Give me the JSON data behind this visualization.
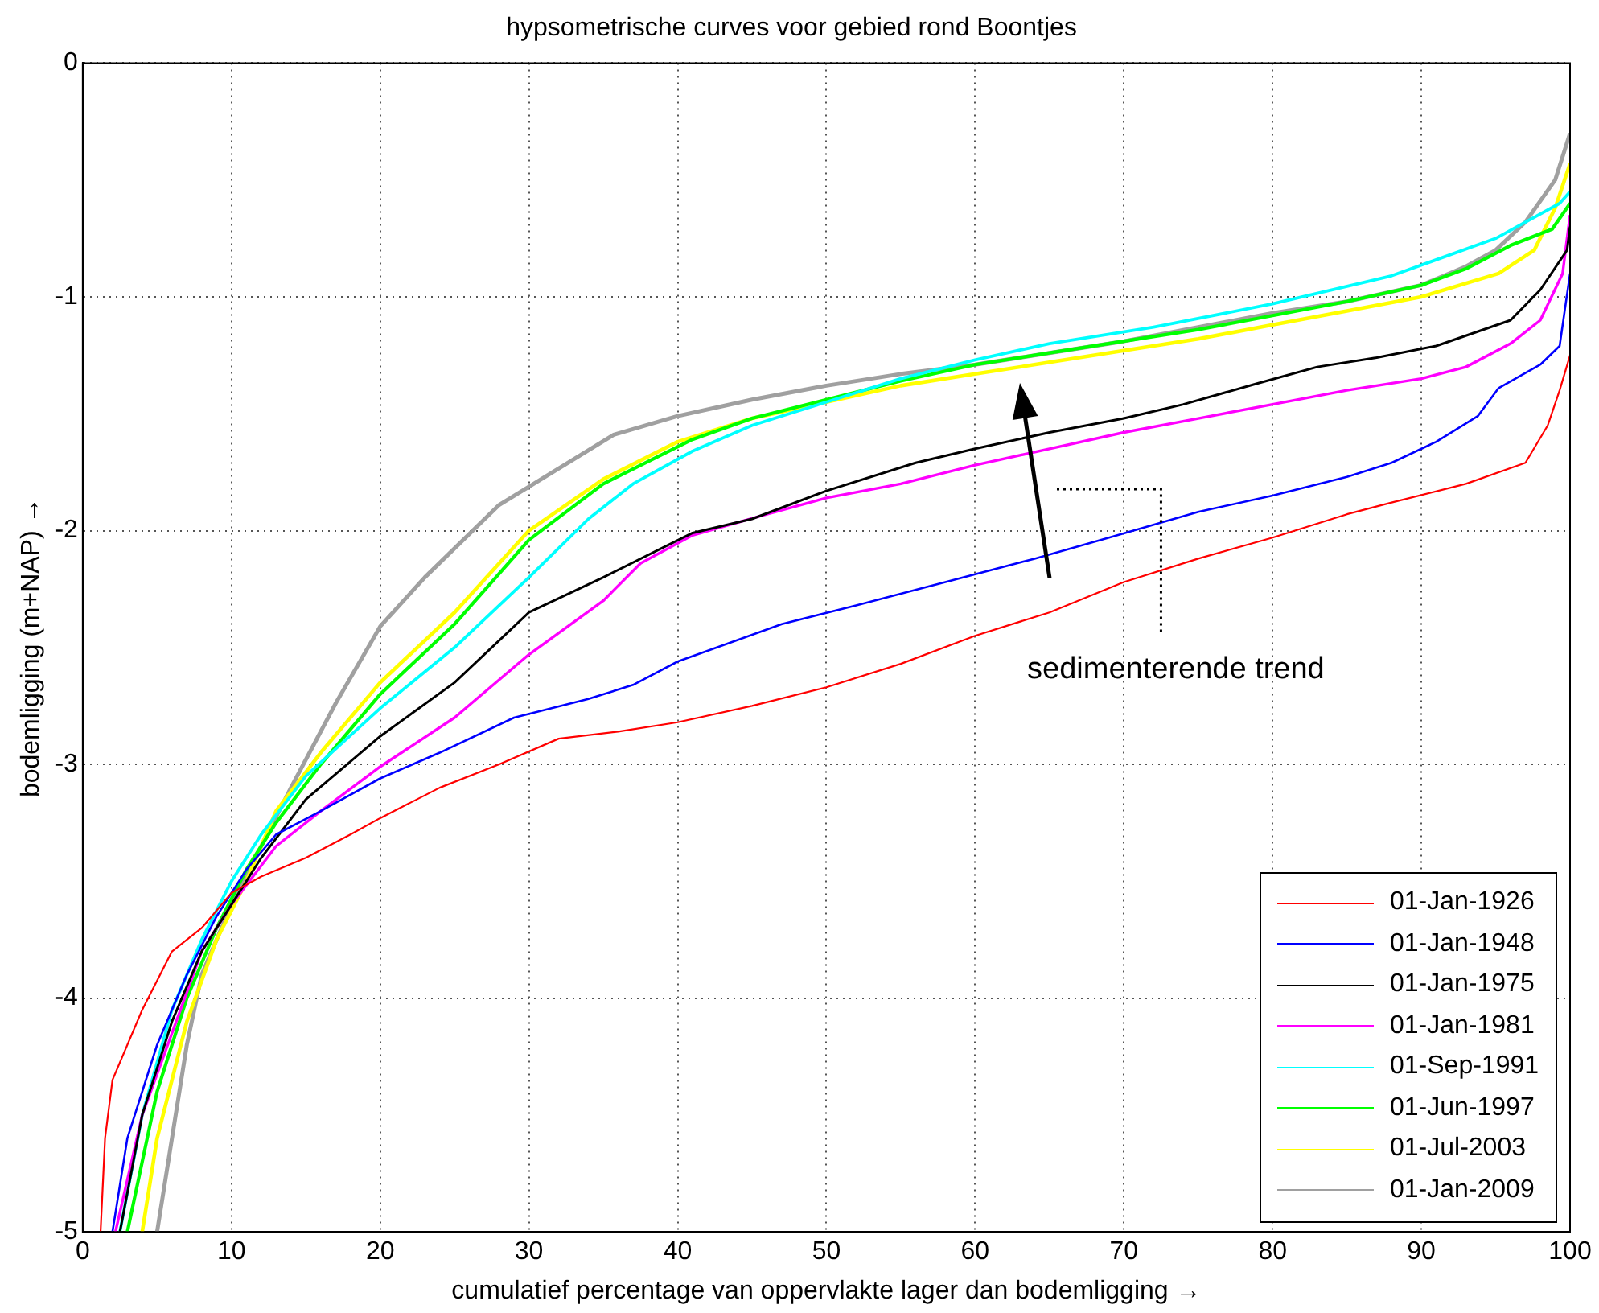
{
  "chart_data": {
    "type": "line",
    "title": "hypsometrische curves voor gebied rond Boontjes",
    "xlabel": "cumulatief percentage van oppervlakte lager dan bodemligging →",
    "ylabel": "bodemligging (m+NAP) →",
    "xlim": [
      0,
      100
    ],
    "xticks": [
      0,
      10,
      20,
      30,
      40,
      50,
      60,
      70,
      80,
      90,
      100
    ],
    "ylim": [
      -5,
      0
    ],
    "yticks": [
      -5,
      -4,
      -3,
      -2,
      -1,
      0
    ],
    "grid": true,
    "legend": "bottom right",
    "annotations": [
      "sedimenterende trend"
    ],
    "series": [
      {
        "name": "01-Jan-1926",
        "color": "#ff0000",
        "x": [
          1.2,
          1.5,
          2,
          4,
          6,
          8,
          10,
          12,
          15,
          18,
          20,
          24,
          28,
          32,
          36,
          40,
          45,
          50,
          55,
          60,
          65,
          70,
          75,
          80,
          85,
          88,
          93,
          97,
          98.5,
          99.3,
          100
        ],
        "values": [
          -5,
          -4.6,
          -4.35,
          -4.05,
          -3.8,
          -3.7,
          -3.55,
          -3.48,
          -3.4,
          -3.3,
          -3.23,
          -3.1,
          -3.0,
          -2.89,
          -2.86,
          -2.82,
          -2.75,
          -2.67,
          -2.57,
          -2.45,
          -2.35,
          -2.22,
          -2.12,
          -2.03,
          -1.93,
          -1.88,
          -1.8,
          -1.71,
          -1.55,
          -1.4,
          -1.25
        ]
      },
      {
        "name": "01-Jan-1948",
        "color": "#0000ff",
        "x": [
          2,
          3,
          5,
          7,
          9,
          11,
          13,
          16,
          20,
          24,
          29,
          34,
          37,
          40,
          47,
          52,
          58,
          64,
          69,
          75,
          80,
          85,
          88,
          91,
          93.8,
          95.2,
          98,
          99.3,
          100
        ],
        "values": [
          -5,
          -4.6,
          -4.2,
          -3.9,
          -3.65,
          -3.45,
          -3.3,
          -3.2,
          -3.06,
          -2.95,
          -2.8,
          -2.72,
          -2.66,
          -2.56,
          -2.4,
          -2.32,
          -2.22,
          -2.12,
          -2.03,
          -1.92,
          -1.85,
          -1.77,
          -1.71,
          -1.62,
          -1.51,
          -1.39,
          -1.29,
          -1.21,
          -0.9
        ]
      },
      {
        "name": "01-Jan-1975",
        "color": "#000000",
        "x": [
          2.5,
          4,
          6,
          8,
          10,
          12,
          15,
          20,
          25,
          30,
          35,
          41,
          45,
          50,
          56,
          60,
          65,
          70,
          74,
          79,
          83,
          87,
          91,
          96,
          98,
          99.8,
          100
        ],
        "values": [
          -5,
          -4.5,
          -4.1,
          -3.8,
          -3.6,
          -3.4,
          -3.15,
          -2.88,
          -2.65,
          -2.35,
          -2.2,
          -2.01,
          -1.95,
          -1.83,
          -1.71,
          -1.65,
          -1.58,
          -1.52,
          -1.46,
          -1.37,
          -1.3,
          -1.26,
          -1.21,
          -1.1,
          -0.97,
          -0.8,
          -0.7
        ]
      },
      {
        "name": "01-Jan-1981",
        "color": "#ff00ff",
        "x": [
          2.2,
          4,
          6,
          8,
          10,
          13,
          16,
          20,
          25,
          30,
          35,
          37.5,
          41,
          46,
          50,
          55,
          60,
          65,
          70,
          75,
          80,
          85,
          90,
          93,
          96,
          98,
          99.5,
          100
        ],
        "values": [
          -5,
          -4.5,
          -4.15,
          -3.8,
          -3.6,
          -3.35,
          -3.2,
          -3.01,
          -2.8,
          -2.53,
          -2.3,
          -2.14,
          -2.02,
          -1.93,
          -1.86,
          -1.8,
          -1.72,
          -1.65,
          -1.58,
          -1.52,
          -1.46,
          -1.4,
          -1.35,
          -1.3,
          -1.2,
          -1.1,
          -0.9,
          -0.65
        ]
      },
      {
        "name": "01-Sep-1991",
        "color": "#00ffff",
        "x": [
          2.5,
          4,
          6,
          8,
          10,
          12,
          15,
          20,
          25,
          30,
          34,
          37,
          41,
          45,
          50,
          55,
          60,
          65,
          72,
          80,
          88,
          95,
          99.3,
          100
        ],
        "values": [
          -5,
          -4.5,
          -4.05,
          -3.75,
          -3.5,
          -3.3,
          -3.05,
          -2.76,
          -2.5,
          -2.2,
          -1.95,
          -1.8,
          -1.66,
          -1.55,
          -1.45,
          -1.35,
          -1.27,
          -1.2,
          -1.13,
          -1.03,
          -0.91,
          -0.75,
          -0.6,
          -0.55
        ]
      },
      {
        "name": "01-Jun-1997",
        "color": "#00ff00",
        "x": [
          3,
          5,
          7,
          9,
          11,
          13,
          16,
          20,
          25,
          30,
          35,
          41,
          45,
          50,
          55,
          60,
          65,
          70,
          75,
          80,
          85,
          90,
          93,
          96,
          98.8,
          100
        ],
        "values": [
          -5,
          -4.4,
          -4.0,
          -3.7,
          -3.45,
          -3.25,
          -3.0,
          -2.7,
          -2.4,
          -2.04,
          -1.8,
          -1.61,
          -1.52,
          -1.44,
          -1.36,
          -1.29,
          -1.24,
          -1.19,
          -1.14,
          -1.08,
          -1.02,
          -0.95,
          -0.88,
          -0.78,
          -0.71,
          -0.6
        ]
      },
      {
        "name": "01-Jul-2003",
        "color": "#ffff00",
        "x": [
          4,
          5,
          7,
          9,
          11,
          13,
          16,
          20,
          25,
          30,
          35,
          40,
          45,
          50,
          55,
          60,
          65,
          70,
          75,
          80,
          85,
          90,
          95.2,
          97.6,
          99,
          100
        ],
        "values": [
          -5,
          -4.6,
          -4.1,
          -3.75,
          -3.5,
          -3.2,
          -2.95,
          -2.65,
          -2.35,
          -2.0,
          -1.78,
          -1.62,
          -1.52,
          -1.45,
          -1.38,
          -1.33,
          -1.28,
          -1.23,
          -1.18,
          -1.12,
          -1.06,
          -1.0,
          -0.9,
          -0.8,
          -0.62,
          -0.43
        ]
      },
      {
        "name": "01-Jan-2009",
        "color": "#a0a0a0",
        "x": [
          5,
          6,
          7,
          8,
          10,
          12,
          14,
          17,
          20,
          23,
          28,
          35.7,
          40,
          45,
          50,
          55,
          60,
          65,
          70,
          75,
          80,
          85,
          90,
          93,
          95,
          97,
          99,
          100
        ],
        "values": [
          -5,
          -4.6,
          -4.2,
          -3.9,
          -3.6,
          -3.35,
          -3.1,
          -2.74,
          -2.41,
          -2.2,
          -1.89,
          -1.59,
          -1.51,
          -1.44,
          -1.38,
          -1.33,
          -1.29,
          -1.24,
          -1.19,
          -1.13,
          -1.07,
          -1.02,
          -0.95,
          -0.87,
          -0.8,
          -0.68,
          -0.5,
          -0.3
        ]
      }
    ]
  }
}
